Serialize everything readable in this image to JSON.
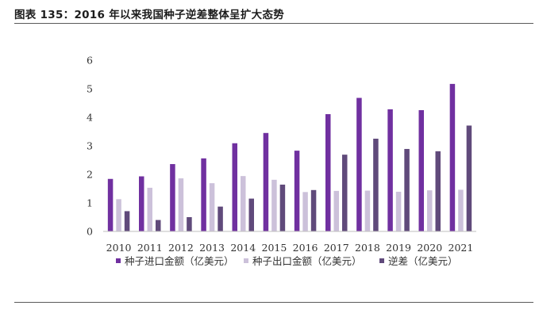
{
  "figure": {
    "caption": "图表 135：2016 年以来我国种子逆差整体呈扩大态势"
  },
  "chart_data": {
    "type": "bar",
    "categories": [
      "2010",
      "2011",
      "2012",
      "2013",
      "2014",
      "2015",
      "2016",
      "2017",
      "2018",
      "2019",
      "2020",
      "2021"
    ],
    "series": [
      {
        "name": "种子进口金额（亿美元）",
        "color": "#7030a0",
        "values": [
          1.84,
          1.93,
          2.36,
          2.56,
          3.09,
          3.45,
          2.83,
          4.11,
          4.68,
          4.28,
          4.25,
          5.17
        ]
      },
      {
        "name": "种子出口金额（亿美元）",
        "color": "#ccc1da",
        "values": [
          1.13,
          1.53,
          1.86,
          1.69,
          1.94,
          1.81,
          1.38,
          1.42,
          1.43,
          1.39,
          1.44,
          1.46
        ]
      },
      {
        "name": "逆差（亿美元）",
        "color": "#604a7b",
        "values": [
          0.71,
          0.4,
          0.5,
          0.87,
          1.15,
          1.64,
          1.45,
          2.69,
          3.25,
          2.89,
          2.81,
          3.71
        ]
      }
    ],
    "yticks": [
      "0",
      "1",
      "2",
      "3",
      "4",
      "5",
      "6"
    ],
    "ylim": [
      0,
      6
    ],
    "grid": false,
    "legend_position": "bottom"
  }
}
